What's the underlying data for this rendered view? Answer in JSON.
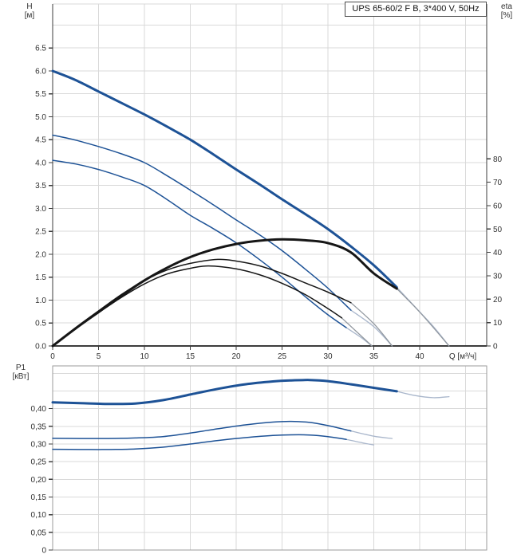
{
  "colors": {
    "curve_blue": "#1d5296",
    "curve_black": "#161616",
    "tail_blue": "#a9b6cb",
    "tail_gray": "#90979f",
    "grid": "#d9d9d9",
    "axis_dark": "#3c3c3c",
    "box_gray": "#9b9b9b",
    "text": "#303030"
  },
  "chart_data": [
    {
      "id": "head-efficiency-chart",
      "type": "line",
      "title": "UPS 65-60/2 F B, 3*400 V, 50Hz",
      "x_axis": {
        "label": "Q [м³/ч]",
        "ticks": [
          0,
          5,
          10,
          15,
          20,
          25,
          30,
          35,
          40
        ],
        "grid_step": 5,
        "range": [
          0,
          47.3
        ]
      },
      "y_left": {
        "label": "H",
        "unit": "[м]",
        "ticks": [
          "0.0",
          "0.5",
          "1.0",
          "1.5",
          "2.0",
          "2.5",
          "3.0",
          "3.5",
          "4.0",
          "4.5",
          "5.0",
          "5.5",
          "6.0",
          "6.5"
        ],
        "grid_step": 0.5,
        "range": [
          0,
          7.46
        ]
      },
      "y_right": {
        "label": "eta",
        "unit": "[%]",
        "ticks": [
          "0",
          "10",
          "20",
          "30",
          "40",
          "50",
          "60",
          "70",
          "80"
        ],
        "range": [
          0,
          146.2
        ]
      },
      "series": [
        {
          "name": "head-curve-speed-1",
          "color": "blue",
          "weight": "thin",
          "axis": "left",
          "points": [
            [
              0,
              4.05
            ],
            [
              2.5,
              3.97
            ],
            [
              5,
              3.85
            ],
            [
              7.5,
              3.69
            ],
            [
              10,
              3.5
            ],
            [
              12.5,
              3.19
            ],
            [
              15,
              2.85
            ],
            [
              17.5,
              2.56
            ],
            [
              20,
              2.25
            ],
            [
              22.5,
              1.89
            ],
            [
              25,
              1.5
            ],
            [
              27.5,
              1.08
            ],
            [
              30,
              0.68
            ],
            [
              32,
              0.4
            ]
          ],
          "tail": [
            [
              32,
              0.4
            ],
            [
              33.5,
              0.2
            ],
            [
              34.8,
              0
            ]
          ]
        },
        {
          "name": "head-curve-speed-2",
          "color": "blue",
          "weight": "thin",
          "axis": "left",
          "points": [
            [
              0,
              4.6
            ],
            [
              2.5,
              4.49
            ],
            [
              5,
              4.35
            ],
            [
              7.5,
              4.19
            ],
            [
              10,
              4.0
            ],
            [
              12.5,
              3.71
            ],
            [
              15,
              3.4
            ],
            [
              17.5,
              3.08
            ],
            [
              20,
              2.75
            ],
            [
              22.5,
              2.43
            ],
            [
              25,
              2.08
            ],
            [
              27.5,
              1.68
            ],
            [
              30,
              1.26
            ],
            [
              32.5,
              0.78
            ]
          ],
          "tail": [
            [
              32.5,
              0.78
            ],
            [
              35,
              0.42
            ],
            [
              37,
              0
            ]
          ]
        },
        {
          "name": "head-curve-speed-3",
          "color": "blue",
          "weight": "bold",
          "axis": "left",
          "points": [
            [
              0,
              6.0
            ],
            [
              2.5,
              5.8
            ],
            [
              5,
              5.55
            ],
            [
              7.5,
              5.3
            ],
            [
              10,
              5.05
            ],
            [
              12.5,
              4.78
            ],
            [
              15,
              4.5
            ],
            [
              17.5,
              4.18
            ],
            [
              20,
              3.85
            ],
            [
              22.5,
              3.53
            ],
            [
              25,
              3.2
            ],
            [
              27.5,
              2.88
            ],
            [
              30,
              2.55
            ],
            [
              32.5,
              2.17
            ],
            [
              35,
              1.76
            ],
            [
              37.5,
              1.28
            ]
          ],
          "tail": [
            [
              37.5,
              1.28
            ],
            [
              39.5,
              0.85
            ],
            [
              41.5,
              0.42
            ],
            [
              43.2,
              0
            ]
          ]
        },
        {
          "name": "efficiency-curve-speed-1",
          "color": "black",
          "weight": "thin",
          "axis": "right",
          "points": [
            [
              0,
              0
            ],
            [
              2.5,
              7.5
            ],
            [
              5,
              14.2
            ],
            [
              7.5,
              20.8
            ],
            [
              10,
              26.5
            ],
            [
              12.5,
              30.8
            ],
            [
              15,
              33.2
            ],
            [
              17,
              34.2
            ],
            [
              20,
              33
            ],
            [
              22.5,
              30.5
            ],
            [
              25,
              26.8
            ],
            [
              27.5,
              22
            ],
            [
              30,
              16
            ],
            [
              31.5,
              12
            ]
          ],
          "tail": [
            [
              31.5,
              12
            ],
            [
              34.8,
              0
            ]
          ]
        },
        {
          "name": "efficiency-curve-speed-2",
          "color": "black",
          "weight": "thin",
          "axis": "right",
          "points": [
            [
              0,
              0
            ],
            [
              2.5,
              7.8
            ],
            [
              5,
              15
            ],
            [
              7.5,
              22
            ],
            [
              10,
              28
            ],
            [
              12.5,
              32.5
            ],
            [
              15,
              35.3
            ],
            [
              18,
              37
            ],
            [
              20,
              36.3
            ],
            [
              22.5,
              34.3
            ],
            [
              25,
              31
            ],
            [
              27.5,
              27
            ],
            [
              30,
              23
            ],
            [
              32.5,
              18.5
            ]
          ],
          "tail": [
            [
              32.5,
              18.5
            ],
            [
              35,
              9.5
            ],
            [
              37,
              0
            ]
          ]
        },
        {
          "name": "efficiency-curve-speed-3",
          "color": "black",
          "weight": "bold",
          "axis": "right",
          "points": [
            [
              0,
              0
            ],
            [
              2.5,
              7.5
            ],
            [
              5,
              14.5
            ],
            [
              7.5,
              21.5
            ],
            [
              10,
              28
            ],
            [
              12.5,
              33.5
            ],
            [
              15,
              38
            ],
            [
              17.5,
              41.3
            ],
            [
              20,
              43.6
            ],
            [
              22.5,
              45
            ],
            [
              25,
              45.6
            ],
            [
              27.5,
              45.2
            ],
            [
              30,
              44
            ],
            [
              32.5,
              40
            ],
            [
              35,
              31
            ],
            [
              37.5,
              24.5
            ]
          ],
          "tail": [
            [
              37.5,
              24.5
            ],
            [
              40,
              14.5
            ],
            [
              43.2,
              0
            ]
          ]
        }
      ]
    },
    {
      "id": "power-chart",
      "type": "line",
      "x_axis": {
        "ticks": [],
        "grid_step": 5,
        "range": [
          0,
          47.3
        ]
      },
      "y_left": {
        "label": "P1",
        "unit": "[кВт]",
        "ticks": [
          "0",
          "0,05",
          "0,10",
          "0,15",
          "0,20",
          "0,25",
          "0,30",
          "0,35",
          "0,40"
        ],
        "grid_step": 0.05,
        "range": [
          0,
          0.521
        ]
      },
      "series": [
        {
          "name": "power-curve-speed-1",
          "color": "blue",
          "weight": "thin",
          "axis": "left",
          "points": [
            [
              0,
              0.285
            ],
            [
              3,
              0.2845
            ],
            [
              6,
              0.2845
            ],
            [
              9,
              0.286
            ],
            [
              12,
              0.291
            ],
            [
              15,
              0.3
            ],
            [
              18,
              0.31
            ],
            [
              21,
              0.318
            ],
            [
              24,
              0.324
            ],
            [
              26,
              0.326
            ],
            [
              28,
              0.3255
            ],
            [
              30,
              0.321
            ],
            [
              32,
              0.313
            ]
          ],
          "tail": [
            [
              32,
              0.313
            ],
            [
              34,
              0.302
            ],
            [
              35,
              0.2975
            ]
          ]
        },
        {
          "name": "power-curve-speed-2",
          "color": "blue",
          "weight": "thin",
          "axis": "left",
          "points": [
            [
              0,
              0.316
            ],
            [
              3,
              0.3155
            ],
            [
              6,
              0.3155
            ],
            [
              9,
              0.317
            ],
            [
              12,
              0.321
            ],
            [
              15,
              0.331
            ],
            [
              18,
              0.343
            ],
            [
              21,
              0.354
            ],
            [
              24,
              0.362
            ],
            [
              26,
              0.364
            ],
            [
              28,
              0.361
            ],
            [
              30,
              0.352
            ],
            [
              32.5,
              0.337
            ]
          ],
          "tail": [
            [
              32.5,
              0.337
            ],
            [
              35,
              0.322
            ],
            [
              37,
              0.3155
            ]
          ]
        },
        {
          "name": "power-curve-speed-3",
          "color": "blue",
          "weight": "bold",
          "axis": "left",
          "points": [
            [
              0,
              0.418
            ],
            [
              3,
              0.4155
            ],
            [
              6,
              0.4135
            ],
            [
              9,
              0.4145
            ],
            [
              12,
              0.424
            ],
            [
              15,
              0.44
            ],
            [
              18,
              0.456
            ],
            [
              21,
              0.469
            ],
            [
              24,
              0.477
            ],
            [
              26,
              0.48
            ],
            [
              28,
              0.481
            ],
            [
              30,
              0.478
            ],
            [
              32.5,
              0.469
            ],
            [
              35,
              0.459
            ],
            [
              37.5,
              0.449
            ]
          ],
          "tail": [
            [
              37.5,
              0.449
            ],
            [
              39.5,
              0.437
            ],
            [
              41.5,
              0.431
            ],
            [
              43.2,
              0.434
            ]
          ]
        }
      ]
    }
  ]
}
